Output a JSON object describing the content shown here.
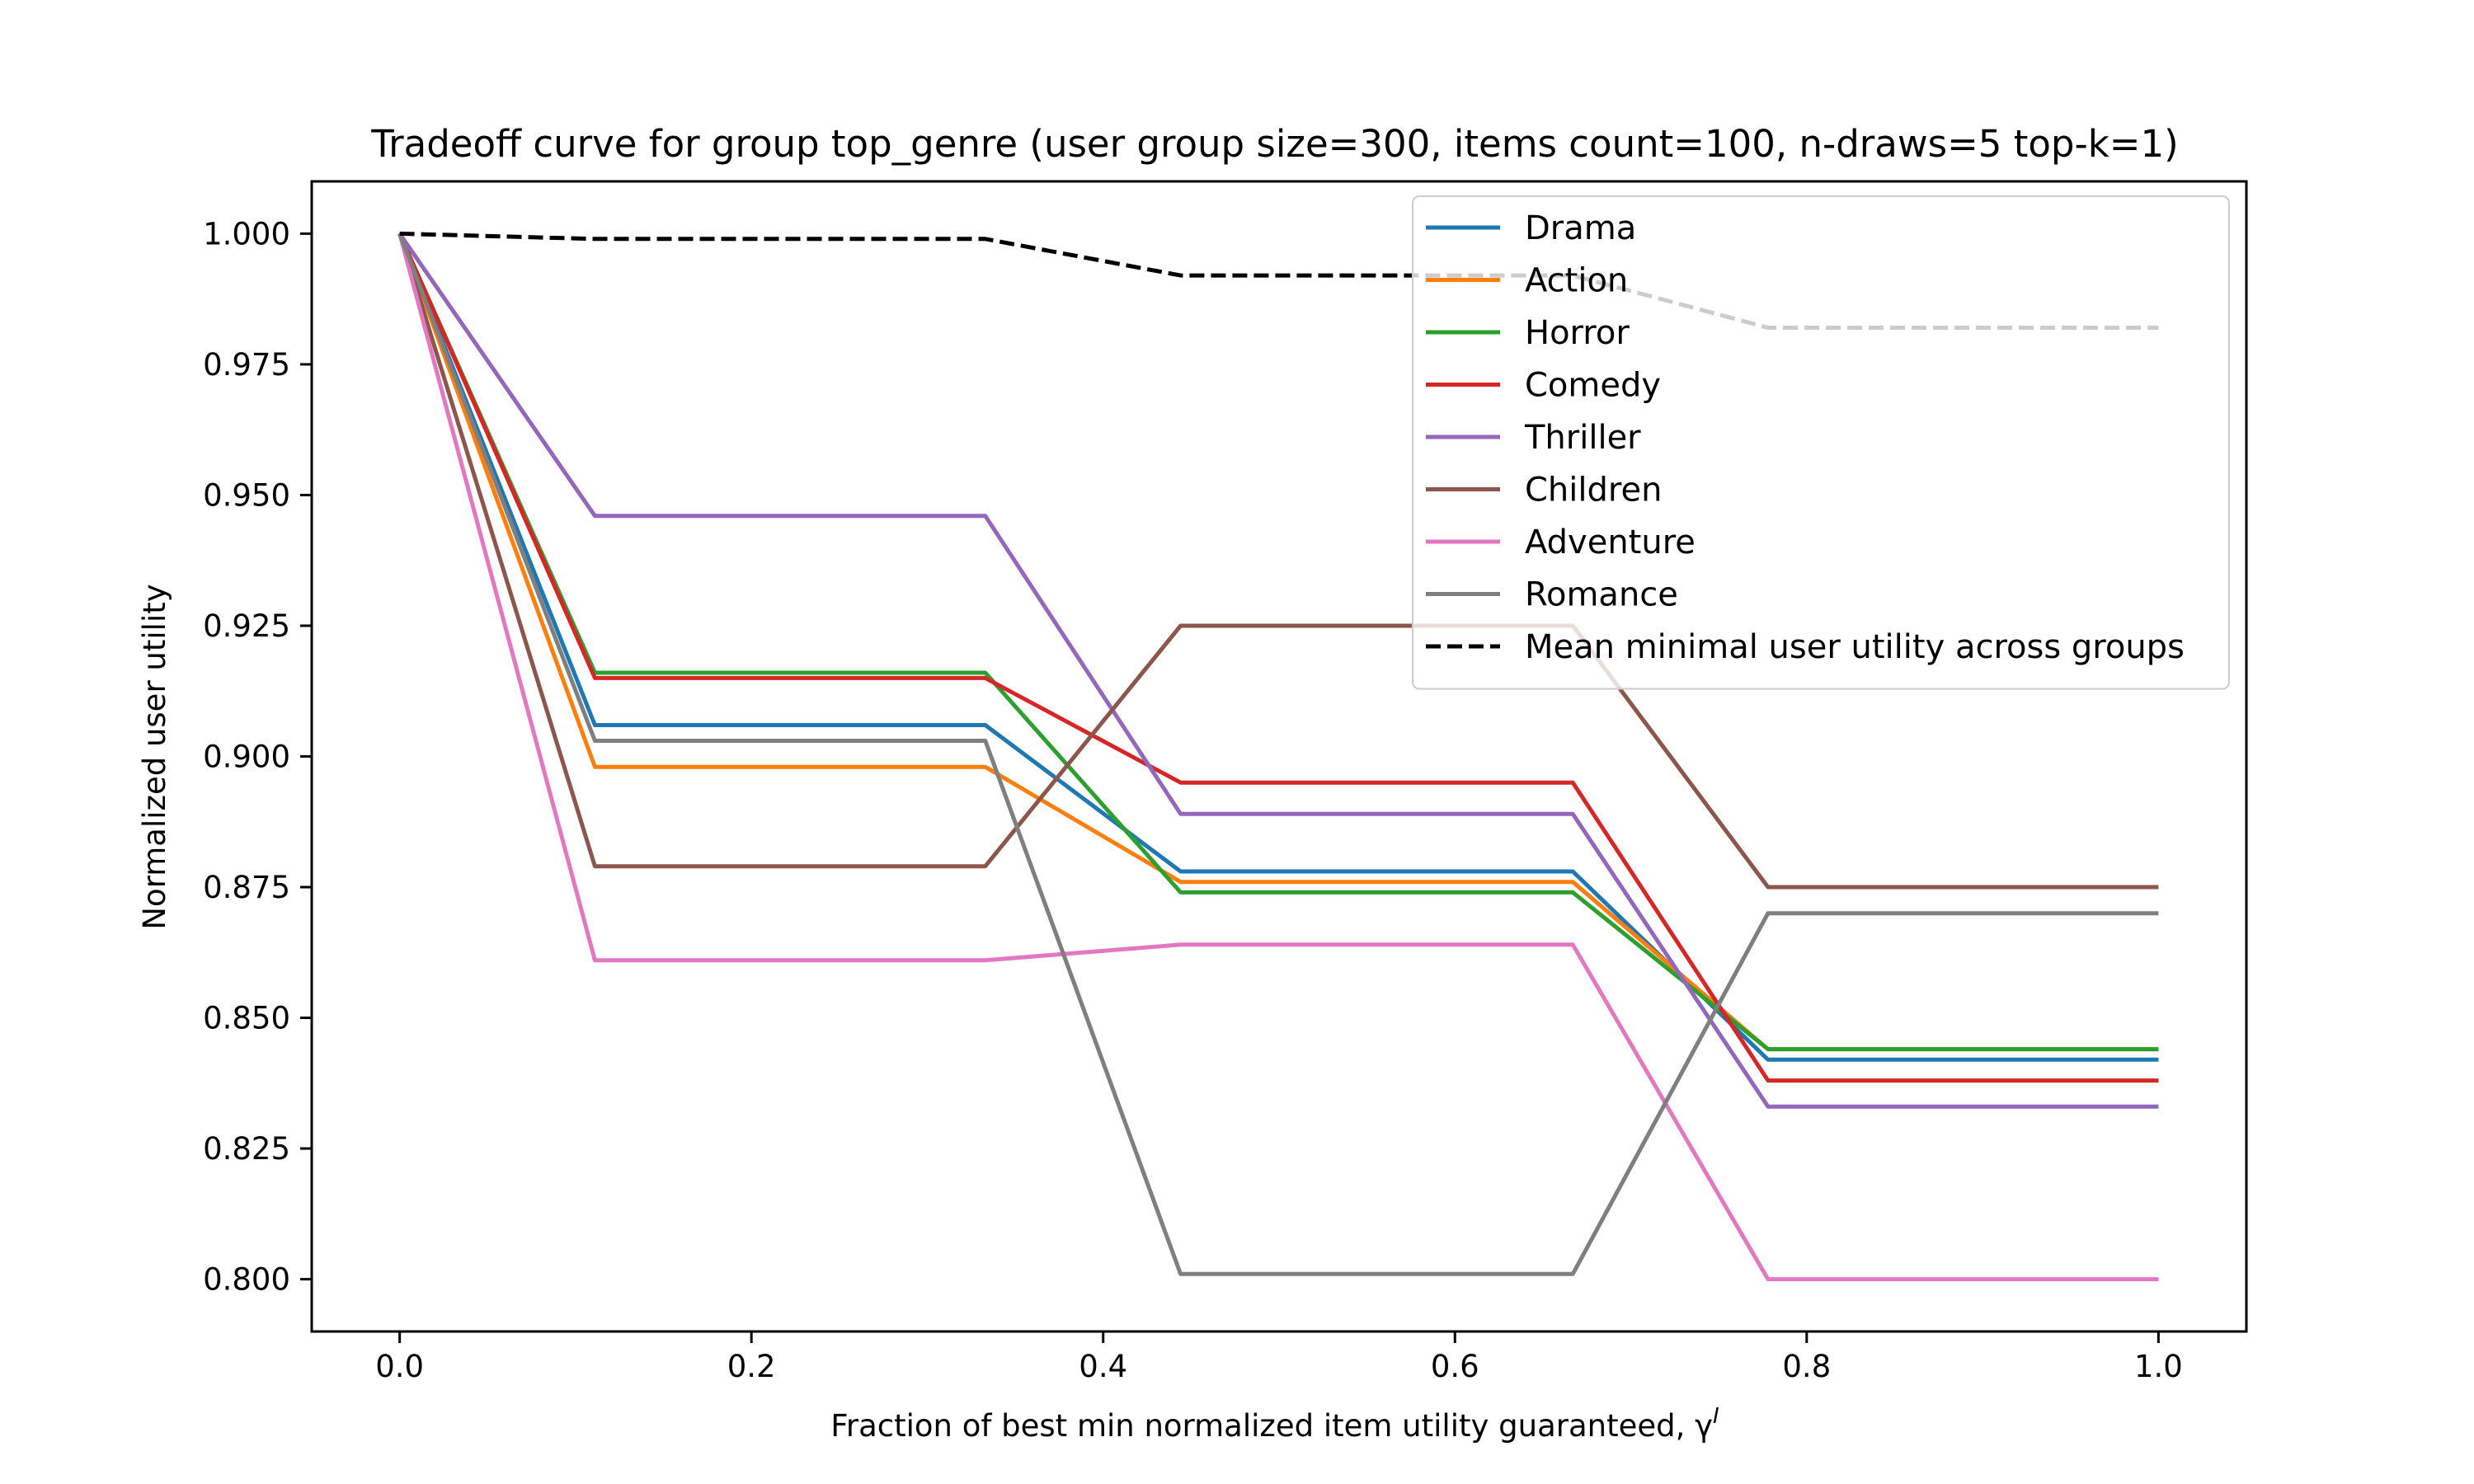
{
  "chart_data": {
    "type": "line",
    "title": "Tradeoff curve for group top_genre (user group size=300, items count=100, n-draws=5 top-k=1)",
    "xlabel": "Fraction of best min normalized item utility guaranteed, γ",
    "xlabel_superscript": "I",
    "ylabel": "Normalized user utility",
    "xlim": [
      -0.05,
      1.05
    ],
    "ylim": [
      0.79,
      1.01
    ],
    "xticks": [
      "0.0",
      "0.2",
      "0.4",
      "0.6",
      "0.8",
      "1.0"
    ],
    "yticks": [
      "0.800",
      "0.825",
      "0.850",
      "0.875",
      "0.900",
      "0.925",
      "0.950",
      "0.975",
      "1.000"
    ],
    "grid": false,
    "legend_position": "top-right",
    "x": [
      0.0,
      0.111,
      0.333,
      0.444,
      0.667,
      0.778,
      1.0
    ],
    "series": [
      {
        "name": "Drama",
        "color": "#1f77b4",
        "style": "solid",
        "values": [
          1.0,
          0.906,
          0.906,
          0.878,
          0.878,
          0.842,
          0.842
        ]
      },
      {
        "name": "Action",
        "color": "#ff7f0e",
        "style": "solid",
        "values": [
          1.0,
          0.898,
          0.898,
          0.876,
          0.876,
          0.844,
          0.844
        ]
      },
      {
        "name": "Horror",
        "color": "#2ca02c",
        "style": "solid",
        "values": [
          1.0,
          0.916,
          0.916,
          0.874,
          0.874,
          0.844,
          0.844
        ]
      },
      {
        "name": "Comedy",
        "color": "#d62728",
        "style": "solid",
        "values": [
          1.0,
          0.915,
          0.915,
          0.895,
          0.895,
          0.838,
          0.838
        ]
      },
      {
        "name": "Thriller",
        "color": "#9467bd",
        "style": "solid",
        "values": [
          1.0,
          0.946,
          0.946,
          0.889,
          0.889,
          0.833,
          0.833
        ]
      },
      {
        "name": "Children",
        "color": "#8c564b",
        "style": "solid",
        "values": [
          1.0,
          0.879,
          0.879,
          0.925,
          0.925,
          0.875,
          0.875
        ]
      },
      {
        "name": "Adventure",
        "color": "#e377c2",
        "style": "solid",
        "values": [
          1.0,
          0.861,
          0.861,
          0.864,
          0.864,
          0.8,
          0.8
        ]
      },
      {
        "name": "Romance",
        "color": "#7f7f7f",
        "style": "solid",
        "values": [
          1.0,
          0.903,
          0.903,
          0.801,
          0.801,
          0.87,
          0.87
        ]
      },
      {
        "name": "Mean minimal user utility across groups",
        "color": "#000000",
        "style": "dashed",
        "values": [
          1.0,
          0.999,
          0.999,
          0.992,
          0.992,
          0.982,
          0.982
        ]
      }
    ]
  }
}
